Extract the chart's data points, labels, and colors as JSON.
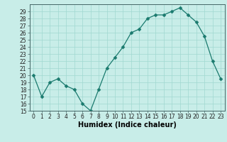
{
  "x": [
    0,
    1,
    2,
    3,
    4,
    5,
    6,
    7,
    8,
    9,
    10,
    11,
    12,
    13,
    14,
    15,
    16,
    17,
    18,
    19,
    20,
    21,
    22,
    23
  ],
  "y": [
    20,
    17,
    19,
    19.5,
    18.5,
    18,
    16,
    15,
    18,
    21,
    22.5,
    24,
    26,
    26.5,
    28,
    28.5,
    28.5,
    29,
    29.5,
    28.5,
    27.5,
    25.5,
    22,
    19.5
  ],
  "line_color": "#1a7a6e",
  "marker_color": "#1a7a6e",
  "bg_color": "#c8ede8",
  "grid_color": "#a0d8d0",
  "xlabel": "Humidex (Indice chaleur)",
  "ylim": [
    15,
    30
  ],
  "xlim_min": -0.5,
  "xlim_max": 23.5,
  "yticks": [
    15,
    16,
    17,
    18,
    19,
    20,
    21,
    22,
    23,
    24,
    25,
    26,
    27,
    28,
    29
  ],
  "xticks": [
    0,
    1,
    2,
    3,
    4,
    5,
    6,
    7,
    8,
    9,
    10,
    11,
    12,
    13,
    14,
    15,
    16,
    17,
    18,
    19,
    20,
    21,
    22,
    23
  ],
  "tick_fontsize": 5.5,
  "label_fontsize": 7,
  "marker_size": 2.5,
  "linewidth": 0.9
}
